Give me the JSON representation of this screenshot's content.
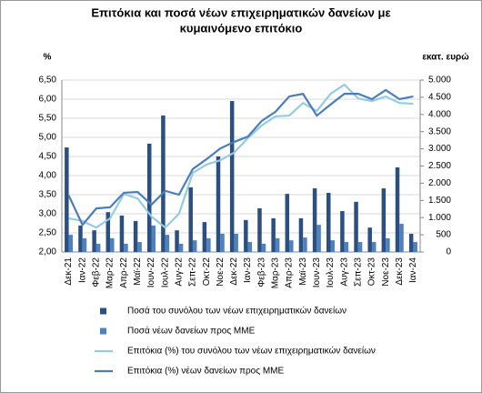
{
  "chart_data": {
    "type": "combo",
    "title": [
      "Επιτόκια και ποσά νέων επιχειρηματικών δανείων με",
      "κυμαινόμενο επιτόκιο"
    ],
    "y_label": "%",
    "y2_label": "εκατ. ευρώ",
    "categories": [
      "Δεκ-21",
      "Ιαν-22",
      "Φεβ-22",
      "Μαρ-22",
      "Απρ-22",
      "Μαϊ-22",
      "Ιουν-22",
      "Ιουλ-22",
      "Αυγ-22",
      "Σεπ-22",
      "Οκτ-22",
      "Νοε-22",
      "Δεκ-22",
      "Ιαν-23",
      "Φεβ-23",
      "Μαρ-23",
      "Απρ-23",
      "Μαϊ-23",
      "Ιουν-23",
      "Ιουλ-23",
      "Αυγ-23",
      "Σεπ-23",
      "Οκτ-23",
      "Νοε-23",
      "Δεκ-23",
      "Ιαν-24"
    ],
    "ylim": [
      2,
      6.5
    ],
    "yticks": [
      {
        "value": 2,
        "label": "2,00"
      },
      {
        "value": 2.5,
        "label": "2,50"
      },
      {
        "value": 3,
        "label": "3,00"
      },
      {
        "value": 3.5,
        "label": "3,50"
      },
      {
        "value": 4,
        "label": "4,00"
      },
      {
        "value": 4.5,
        "label": "4,50"
      },
      {
        "value": 5,
        "label": "5,00"
      },
      {
        "value": 5.5,
        "label": "5,50"
      },
      {
        "value": 6,
        "label": "6,00"
      },
      {
        "value": 6.5,
        "label": "6,50"
      }
    ],
    "y2lim": [
      0,
      5000
    ],
    "y2ticks": [
      0,
      {
        "value": 500,
        "label": "500"
      },
      {
        "value": 1000,
        "label": "1.000"
      },
      {
        "value": 1500,
        "label": "1.500"
      },
      {
        "value": 2000,
        "label": "2.000"
      },
      {
        "value": 2500,
        "label": "2.500"
      },
      {
        "value": 3000,
        "label": "3.000"
      },
      {
        "value": 3500,
        "label": "3.500"
      },
      {
        "value": 4000,
        "label": "4.000"
      },
      {
        "value": 4500,
        "label": "4.500"
      },
      {
        "value": 5000,
        "label": "5.000"
      }
    ],
    "grid": true,
    "series": [
      {
        "name": "Ποσά του συνόλου των νέων επιχειρηματικών δανείων",
        "type": "bar",
        "axis": "y2",
        "color": "#2c4f82",
        "values": [
          3040,
          770,
          630,
          1160,
          1060,
          900,
          3150,
          3970,
          630,
          1880,
          870,
          2780,
          4390,
          930,
          1270,
          980,
          1690,
          980,
          1850,
          1720,
          1190,
          1460,
          710,
          1850,
          2460,
          530
        ]
      },
      {
        "name": "Ποσά νέων δανείων προς ΜΜΕ",
        "type": "bar",
        "axis": "y2",
        "color": "#4f81bd",
        "values": [
          500,
          400,
          240,
          400,
          240,
          290,
          770,
          500,
          240,
          340,
          400,
          530,
          530,
          290,
          240,
          400,
          340,
          420,
          790,
          340,
          290,
          290,
          290,
          400,
          820,
          290
        ]
      },
      {
        "name": "Επιτόκια (%) του συνόλου των νέων επιχειρηματικών δανείων",
        "type": "line",
        "axis": "y",
        "color": "#93cddd",
        "values": [
          2.88,
          2.81,
          2.64,
          2.88,
          3.52,
          3.4,
          2.93,
          2.64,
          3.0,
          4.07,
          4.29,
          4.4,
          4.6,
          4.98,
          5.31,
          5.55,
          5.57,
          5.9,
          5.69,
          6.14,
          6.38,
          6.02,
          5.95,
          6.07,
          5.9,
          5.88
        ]
      },
      {
        "name": "Επιτόκια (%) νέων δανείων προς ΜΜΕ",
        "type": "line",
        "axis": "y",
        "color": "#4a7ebb",
        "values": [
          3.48,
          2.71,
          3.14,
          3.17,
          3.55,
          3.57,
          3.24,
          3.6,
          3.5,
          4.17,
          4.43,
          4.71,
          4.88,
          5.02,
          5.43,
          5.67,
          6.07,
          6.14,
          5.57,
          5.86,
          6.14,
          6.14,
          6.0,
          6.24,
          6.0,
          6.07
        ]
      }
    ]
  }
}
